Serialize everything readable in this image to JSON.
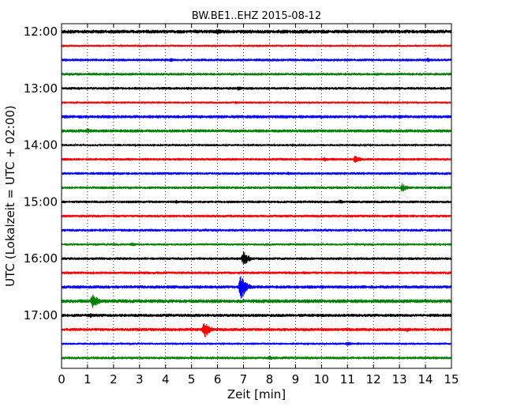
{
  "chart_data": {
    "type": "line",
    "title": "BW.BE1..EHZ 2015-08-12",
    "xlabel": "Zeit  [min]",
    "ylabel": "UTC (Lokalzeit = UTC + 02:00)",
    "xlim": [
      0,
      15
    ],
    "x_ticks": [
      "0",
      "1",
      "2",
      "3",
      "4",
      "5",
      "6",
      "7",
      "8",
      "9",
      "10",
      "11",
      "12",
      "13",
      "14",
      "15"
    ],
    "y_tick_labels": [
      "12:00",
      "13:00",
      "14:00",
      "15:00",
      "16:00",
      "17:00"
    ],
    "grid": true,
    "trace_colors": [
      "#000000",
      "#ff0000",
      "#0000ff",
      "#008000"
    ],
    "traces": [
      {
        "start": "12:00",
        "color": "#000000",
        "amplitude": 0.35,
        "events": [
          {
            "t": 6.0,
            "a": 0.6
          },
          {
            "t": 9.3,
            "a": 0.2
          },
          {
            "t": 9.8,
            "a": 0.25
          },
          {
            "t": 12.7,
            "a": 0.3
          }
        ]
      },
      {
        "start": "12:15",
        "color": "#ff0000",
        "amplitude": 0.2,
        "events": [
          {
            "t": 3.9,
            "a": 0.2
          },
          {
            "t": 9.6,
            "a": 0.15
          }
        ]
      },
      {
        "start": "12:30",
        "color": "#0000ff",
        "amplitude": 0.25,
        "events": [
          {
            "t": 4.2,
            "a": 0.4
          },
          {
            "t": 14.1,
            "a": 0.45
          }
        ]
      },
      {
        "start": "12:45",
        "color": "#008000",
        "amplitude": 0.25,
        "events": [
          {
            "t": 0.3,
            "a": 0.3
          },
          {
            "t": 3.3,
            "a": 0.2
          },
          {
            "t": 12.1,
            "a": 0.3
          },
          {
            "t": 12.8,
            "a": 0.25
          }
        ]
      },
      {
        "start": "13:00",
        "color": "#000000",
        "amplitude": 0.25,
        "events": [
          {
            "t": 6.8,
            "a": 0.45
          },
          {
            "t": 3.3,
            "a": 0.15
          }
        ]
      },
      {
        "start": "13:15",
        "color": "#ff0000",
        "amplitude": 0.2,
        "events": [
          {
            "t": 6.7,
            "a": 0.3
          }
        ]
      },
      {
        "start": "13:30",
        "color": "#0000ff",
        "amplitude": 0.3,
        "events": [
          {
            "t": 2.9,
            "a": 0.25
          },
          {
            "t": 9.9,
            "a": 0.3
          },
          {
            "t": 11.9,
            "a": 0.3
          },
          {
            "t": 13.0,
            "a": 0.4
          }
        ]
      },
      {
        "start": "13:45",
        "color": "#008000",
        "amplitude": 0.3,
        "events": [
          {
            "t": 1.0,
            "a": 0.55
          },
          {
            "t": 9.8,
            "a": 0.3
          }
        ]
      },
      {
        "start": "14:00",
        "color": "#000000",
        "amplitude": 0.2,
        "events": [
          {
            "t": 2.2,
            "a": 0.25
          },
          {
            "t": 7.5,
            "a": 0.2
          }
        ]
      },
      {
        "start": "14:15",
        "color": "#ff0000",
        "amplitude": 0.25,
        "events": [
          {
            "t": 10.1,
            "a": 0.45
          },
          {
            "t": 11.3,
            "a": 0.8
          }
        ]
      },
      {
        "start": "14:30",
        "color": "#0000ff",
        "amplitude": 0.25,
        "events": [
          {
            "t": 2.0,
            "a": 0.4
          },
          {
            "t": 8.7,
            "a": 0.35
          }
        ]
      },
      {
        "start": "14:45",
        "color": "#008000",
        "amplitude": 0.25,
        "events": [
          {
            "t": 13.1,
            "a": 0.85
          },
          {
            "t": 4.5,
            "a": 0.15
          }
        ]
      },
      {
        "start": "15:00",
        "color": "#000000",
        "amplitude": 0.25,
        "events": [
          {
            "t": 4.4,
            "a": 0.35
          },
          {
            "t": 10.7,
            "a": 0.45
          },
          {
            "t": 12.4,
            "a": 0.2
          }
        ]
      },
      {
        "start": "15:15",
        "color": "#ff0000",
        "amplitude": 0.25,
        "events": [
          {
            "t": 10.0,
            "a": 0.3
          },
          {
            "t": 13.0,
            "a": 0.35
          }
        ]
      },
      {
        "start": "15:30",
        "color": "#0000ff",
        "amplitude": 0.25,
        "events": [
          {
            "t": 5.5,
            "a": 0.3
          }
        ]
      },
      {
        "start": "15:45",
        "color": "#008000",
        "amplitude": 0.2,
        "events": [
          {
            "t": 2.7,
            "a": 0.45
          }
        ]
      },
      {
        "start": "16:00",
        "color": "#000000",
        "amplitude": 0.25,
        "events": [
          {
            "t": 7.0,
            "a": 1.5
          }
        ]
      },
      {
        "start": "16:15",
        "color": "#ff0000",
        "amplitude": 0.25,
        "events": [
          {
            "t": 3.2,
            "a": 0.3
          },
          {
            "t": 9.3,
            "a": 0.3
          },
          {
            "t": 11.3,
            "a": 0.3
          }
        ]
      },
      {
        "start": "16:30",
        "color": "#0000ff",
        "amplitude": 0.3,
        "events": [
          {
            "t": 6.9,
            "a": 2.5
          },
          {
            "t": 10.0,
            "a": 0.4
          }
        ]
      },
      {
        "start": "16:45",
        "color": "#008000",
        "amplitude": 0.35,
        "events": [
          {
            "t": 1.2,
            "a": 1.6
          }
        ]
      },
      {
        "start": "17:00",
        "color": "#000000",
        "amplitude": 0.3,
        "events": [
          {
            "t": 1.1,
            "a": 0.5
          },
          {
            "t": 12.0,
            "a": 0.25
          }
        ]
      },
      {
        "start": "17:15",
        "color": "#ff0000",
        "amplitude": 0.3,
        "events": [
          {
            "t": 5.5,
            "a": 1.7
          },
          {
            "t": 13.3,
            "a": 0.5
          }
        ]
      },
      {
        "start": "17:30",
        "color": "#0000ff",
        "amplitude": 0.2,
        "events": [
          {
            "t": 7.4,
            "a": 0.2
          },
          {
            "t": 11.0,
            "a": 0.45
          },
          {
            "t": 11.4,
            "a": 0.3
          }
        ]
      },
      {
        "start": "17:45",
        "color": "#008000",
        "amplitude": 0.25,
        "events": [
          {
            "t": 8.0,
            "a": 0.55
          }
        ]
      }
    ]
  }
}
